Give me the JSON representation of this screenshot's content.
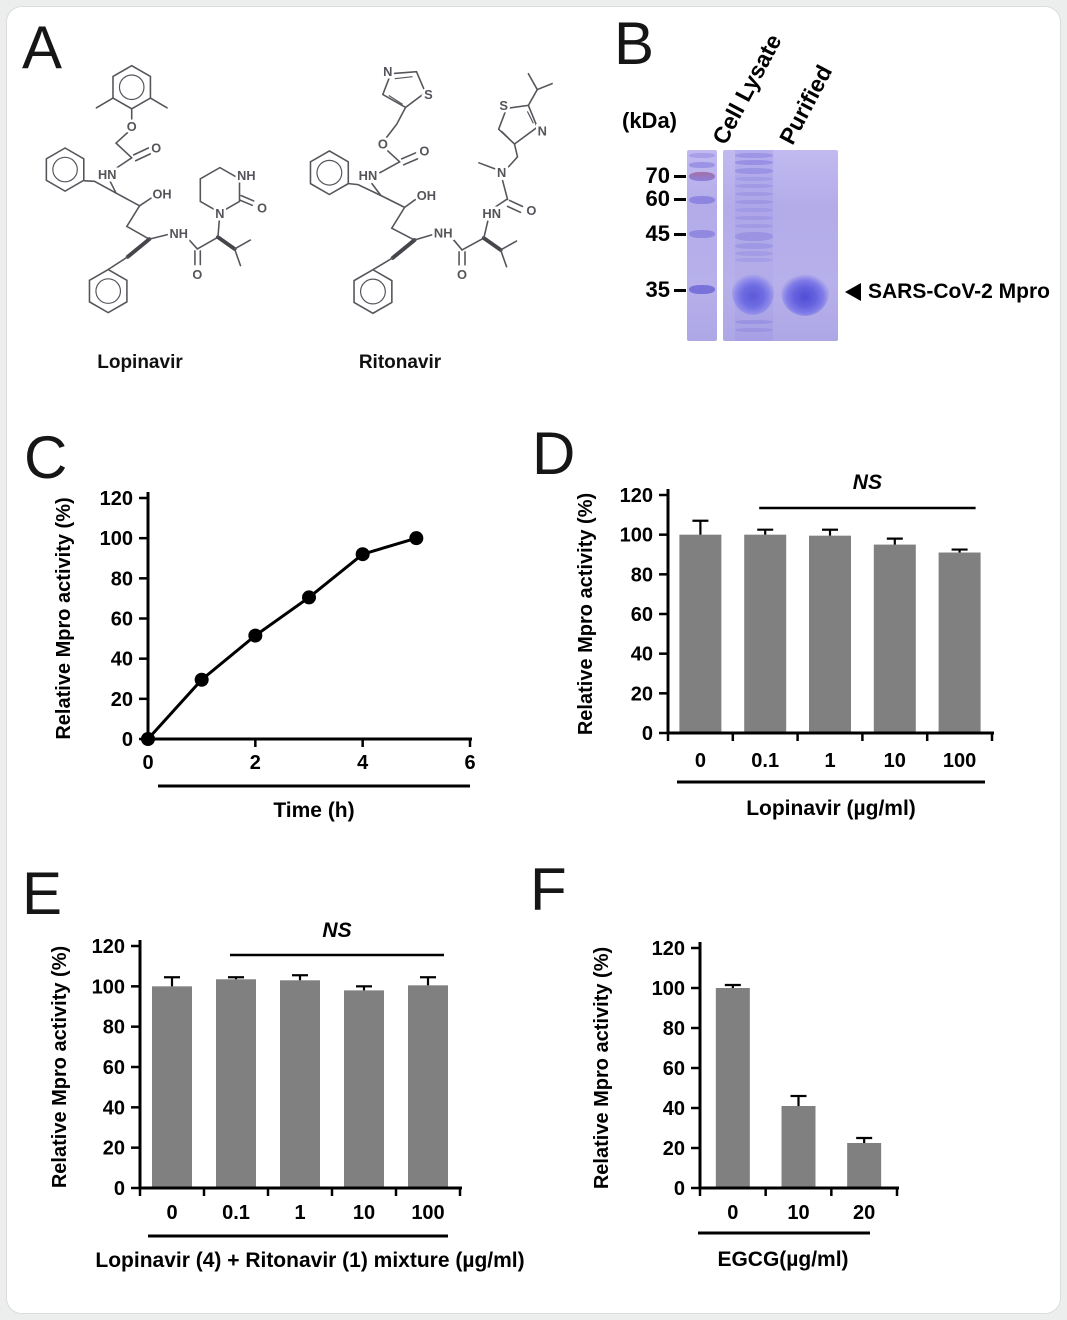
{
  "colors": {
    "bar": "#808080",
    "axis": "#000000",
    "gel_background": "#b6afea",
    "gel_band": "#7a74e0",
    "gel_blob": "#605cd8",
    "ladder_70_band": "#9b6a96",
    "structure_line": "#55555c",
    "panel_letter": "#161616"
  },
  "panels": {
    "a": "A",
    "b": "B",
    "c": "C",
    "d": "D",
    "e": "E",
    "f": "F"
  },
  "panelA": {
    "molecules": [
      {
        "name": "Lopinavir",
        "atoms": [
          "O",
          "O",
          "HN",
          "OH",
          "NH",
          "O",
          "N",
          "NH",
          "O"
        ]
      },
      {
        "name": "Ritonavir",
        "atoms": [
          "N",
          "S",
          "O",
          "O",
          "HN",
          "OH",
          "NH",
          "O",
          "HN",
          "O",
          "N",
          "S",
          "N"
        ]
      }
    ]
  },
  "panelB": {
    "kda_label": "(kDa)",
    "markers": [
      "70",
      "60",
      "45",
      "35"
    ],
    "lane_labels": [
      "Cell Lysate",
      "Purified"
    ],
    "annotation": "SARS-CoV-2 Mpro"
  },
  "chart_data": [
    {
      "id": "C",
      "type": "line",
      "xlabel": "Time (h)",
      "ylabel": "Relative Mpro activity (%)",
      "x": [
        0,
        1,
        2,
        3,
        4,
        5
      ],
      "y": [
        0,
        29.5,
        51.5,
        70.5,
        92,
        100
      ],
      "xlim": [
        0,
        6
      ],
      "xticks": [
        0,
        2,
        4,
        6
      ],
      "ylim": [
        0,
        120
      ],
      "yticks": [
        0,
        20,
        40,
        60,
        80,
        100,
        120
      ],
      "grid": false,
      "legend": null,
      "annotation": null
    },
    {
      "id": "D",
      "type": "bar",
      "xlabel": "Lopinavir (µg/ml)",
      "ylabel": "Relative Mpro activity (%)",
      "categories": [
        "0",
        "0.1",
        "1",
        "10",
        "100"
      ],
      "values": [
        100,
        100,
        99.5,
        95,
        91
      ],
      "errors": [
        7,
        2.5,
        3,
        3,
        1.5
      ],
      "ylim": [
        0,
        120
      ],
      "yticks": [
        0,
        20,
        40,
        60,
        80,
        100,
        120
      ],
      "grid": false,
      "legend": null,
      "annotation": {
        "label": "NS",
        "from": 1,
        "to": 4
      }
    },
    {
      "id": "E",
      "type": "bar",
      "xlabel": "Lopinavir (4) + Ritonavir (1) mixture (µg/ml)",
      "ylabel": "Relative Mpro activity (%)",
      "categories": [
        "0",
        "0.1",
        "1",
        "10",
        "100"
      ],
      "values": [
        100,
        103.5,
        103,
        98,
        100.5
      ],
      "errors": [
        4.5,
        1,
        2.5,
        2,
        4
      ],
      "ylim": [
        0,
        120
      ],
      "yticks": [
        0,
        20,
        40,
        60,
        80,
        100,
        120
      ],
      "grid": false,
      "legend": null,
      "annotation": {
        "label": "NS",
        "from": 1,
        "to": 4
      }
    },
    {
      "id": "F",
      "type": "bar",
      "xlabel": "EGCG(µg/ml)",
      "ylabel": "Relative Mpro activity (%)",
      "categories": [
        "0",
        "10",
        "20"
      ],
      "values": [
        100,
        41,
        22.5
      ],
      "errors": [
        1.5,
        5,
        2.5
      ],
      "ylim": [
        0,
        120
      ],
      "yticks": [
        0,
        20,
        40,
        60,
        80,
        100,
        120
      ],
      "grid": false,
      "legend": null,
      "annotation": null
    }
  ]
}
